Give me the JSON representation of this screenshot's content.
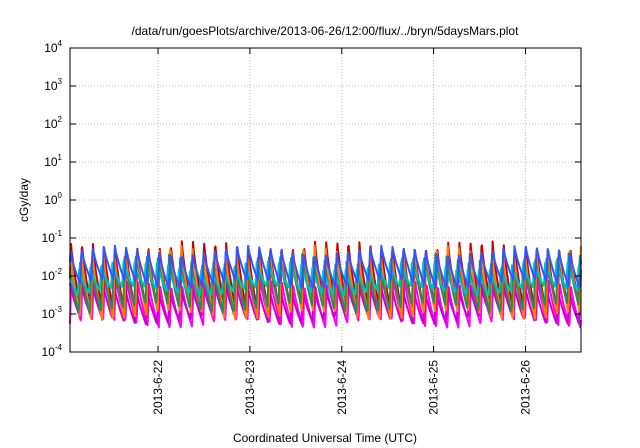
{
  "chart_data": {
    "type": "line",
    "title": "/data/run/goesPlots/archive/2013-06-26/12:00/flux/../bryn/5daysMars.plot",
    "xlabel": "Coordinated Universal Time (UTC)",
    "ylabel": "cGy/day",
    "yscale": "log",
    "ylim": [
      0.0001,
      10000
    ],
    "xlim": [
      "2013-06-21T01:00",
      "2013-06-26T14:30"
    ],
    "grid": true,
    "y_ticks": [
      {
        "value": 0.0001,
        "base": "10",
        "exp": "-4"
      },
      {
        "value": 0.001,
        "base": "10",
        "exp": "-3"
      },
      {
        "value": 0.01,
        "base": "10",
        "exp": "-2"
      },
      {
        "value": 0.1,
        "base": "10",
        "exp": "-1"
      },
      {
        "value": 1,
        "base": "10",
        "exp": "0"
      },
      {
        "value": 10,
        "base": "10",
        "exp": "1"
      },
      {
        "value": 100,
        "base": "10",
        "exp": "2"
      },
      {
        "value": 1000,
        "base": "10",
        "exp": "3"
      },
      {
        "value": 10000,
        "base": "10",
        "exp": "4"
      }
    ],
    "x_ticks": [
      {
        "value": "2013-06-22",
        "label": "2013-6-22"
      },
      {
        "value": "2013-06-23",
        "label": "2013-6-23"
      },
      {
        "value": "2013-06-24",
        "label": "2013-6-24"
      },
      {
        "value": "2013-06-25",
        "label": "2013-6-25"
      },
      {
        "value": "2013-06-26",
        "label": "2013-6-26"
      }
    ],
    "cycle_hours": 2.9,
    "series": [
      {
        "color": "#ff00ff",
        "peak": 0.0075,
        "trough": 0.00055,
        "phase": 0.0
      },
      {
        "color": "#cc00cc",
        "peak": 0.006,
        "trough": 0.0007,
        "phase": 0.15
      },
      {
        "color": "#cc0000",
        "peak": 0.07,
        "trough": 0.0012,
        "phase": 0.05
      },
      {
        "color": "#ff7f00",
        "peak": 0.05,
        "trough": 0.0009,
        "phase": 0.1
      },
      {
        "color": "#2e8b57",
        "peak": 0.03,
        "trough": 0.0014,
        "phase": 0.2
      },
      {
        "color": "#00c0c0",
        "peak": 0.02,
        "trough": 0.004,
        "phase": 0.3
      },
      {
        "color": "#3355ff",
        "peak": 0.05,
        "trough": 0.006,
        "phase": 0.08
      }
    ]
  }
}
